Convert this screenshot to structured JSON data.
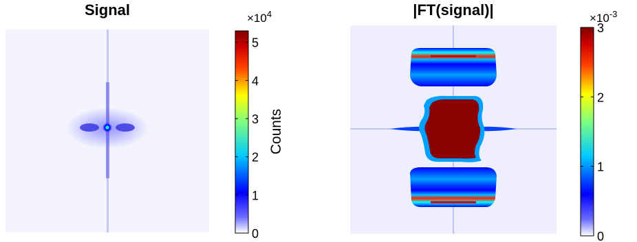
{
  "chart_data": [
    {
      "type": "heatmap",
      "title": "Signal",
      "colorbar": {
        "label": "Counts",
        "scale_exponent_text": "×10",
        "scale_exponent_power": "4",
        "min": 0,
        "max": 5.3,
        "ticks": [
          "0",
          "1",
          "2",
          "3",
          "4",
          "5"
        ]
      },
      "colormap": "jet-with-white-low",
      "description": "Bright central spot with vertical streak and faint side lobes"
    },
    {
      "type": "heatmap",
      "title": "|FT(signal)|",
      "colorbar": {
        "label": "",
        "scale_exponent_text": "×10",
        "scale_exponent_power": "-3",
        "min": 0,
        "max": 3,
        "ticks": [
          "0",
          "1",
          "2",
          "3"
        ]
      },
      "colormap": "jet-with-white-low",
      "description": "Saturated central block with two striped lobes above and below and a horizontal streak"
    }
  ],
  "colors": {
    "jet_stops": [
      "#ffffff",
      "#0000ff",
      "#00ffff",
      "#ffff00",
      "#ff0000",
      "#800000"
    ]
  }
}
